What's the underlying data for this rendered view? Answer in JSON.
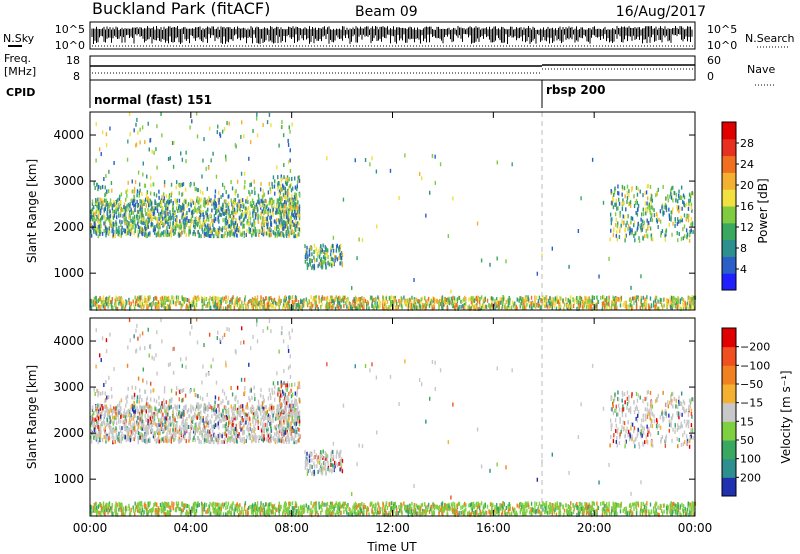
{
  "header": {
    "title": "Buckland Park (fitACF)",
    "beam": "Beam 09",
    "date": "16/Aug/2017"
  },
  "top_panels": {
    "nsky_label": "N.Sky",
    "nsky_ticks": [
      "10^5",
      "10^0"
    ],
    "nsearch_label": "N.Search",
    "nsearch_ticks": [
      "10^5",
      "10^0"
    ],
    "freq_label": "Freq.",
    "freq_unit": "[MHz]",
    "freq_ticks": [
      "18",
      "8"
    ],
    "nave_label": "Nave",
    "nave_ticks": [
      "60",
      "0"
    ],
    "cpid_label": "CPID",
    "cpid_segments": [
      {
        "label": "normal (fast) 151",
        "start": "00:00"
      },
      {
        "label": "rbsp 200",
        "start": "18:00"
      }
    ]
  },
  "chart_data": [
    {
      "type": "heatmap",
      "panel": "power",
      "ylabel": "Slant Range [km]",
      "ylim": [
        200,
        4500
      ],
      "yticks": [
        "1000",
        "2000",
        "3000",
        "4000"
      ],
      "xlabel": "",
      "xlim_hours": [
        0,
        24
      ],
      "colorbar": {
        "label": "Power [dB]",
        "range": [
          0,
          32
        ],
        "ticks": [
          "4",
          "8",
          "12",
          "16",
          "20",
          "24",
          "28"
        ],
        "colors": [
          "#1f1fff",
          "#2a5fc8",
          "#2e8f8f",
          "#3aa860",
          "#7fcc40",
          "#f0e040",
          "#f4b030",
          "#f07020",
          "#e83020",
          "#e00000"
        ]
      }
    },
    {
      "type": "heatmap",
      "panel": "velocity",
      "ylabel": "Slant Range [km]",
      "ylim": [
        200,
        4500
      ],
      "yticks": [
        "1000",
        "2000",
        "3000",
        "4000"
      ],
      "xlabel": "Time UT",
      "xticks": [
        "00:00",
        "04:00",
        "08:00",
        "12:00",
        "16:00",
        "20:00",
        "00:00"
      ],
      "xlim_hours": [
        0,
        24
      ],
      "colorbar": {
        "label": "Velocity [m s⁻¹]",
        "range": [
          -250,
          250
        ],
        "ticks": [
          "200",
          "100",
          "50",
          "15",
          "−15",
          "−50",
          "−100",
          "−200"
        ],
        "colors": [
          "#2030b0",
          "#2e8f8f",
          "#3aa860",
          "#7fd040",
          "#c8c8c8",
          "#f4b030",
          "#f08020",
          "#f05020",
          "#e00000"
        ]
      }
    }
  ],
  "colors": {
    "ground_scatter": "#888888",
    "cpid_change_line": "#999999"
  }
}
